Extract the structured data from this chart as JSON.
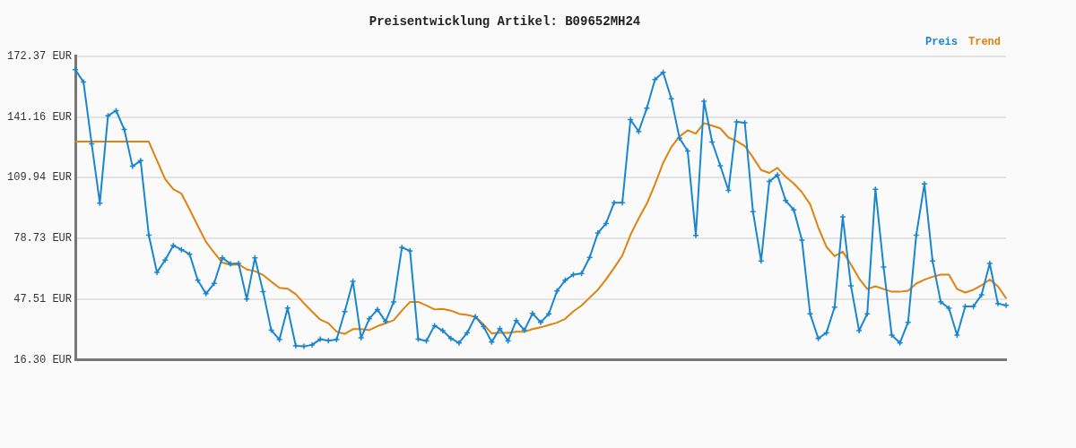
{
  "chart_data": {
    "type": "line",
    "title": "Preisentwicklung Artikel: B09652MH24",
    "categories": [
      null,
      null,
      null,
      null,
      null,
      null,
      null,
      null,
      null,
      null,
      null,
      null,
      null,
      null,
      null,
      null,
      null,
      null,
      null,
      null,
      null,
      null,
      null,
      null,
      null,
      null,
      null,
      null,
      null,
      null,
      null,
      null,
      null,
      null,
      null,
      null,
      null,
      null,
      null,
      null,
      null,
      null,
      null,
      null,
      null,
      null,
      null,
      null,
      null,
      null,
      null,
      null,
      null,
      null,
      null,
      null,
      null,
      null,
      null,
      null,
      null,
      null,
      null,
      null,
      null,
      null,
      null,
      null,
      null,
      null,
      null,
      null,
      null,
      null,
      null,
      null,
      null,
      null,
      null,
      null,
      null,
      null,
      null,
      null,
      null,
      null,
      null,
      null,
      null,
      null,
      null,
      null,
      null,
      null,
      null,
      null,
      null,
      null,
      null,
      null,
      null,
      null,
      null,
      null,
      null,
      null,
      null,
      null,
      null,
      null,
      null,
      null,
      null,
      null,
      null
    ],
    "series": [
      {
        "name": "Preis",
        "color": "#1a86d0",
        "marker": "cross",
        "values": [
          165.5,
          159.1,
          127.4,
          96.9,
          141.8,
          144.4,
          134.7,
          115.8,
          118.7,
          80.4,
          61.3,
          67.6,
          75.1,
          72.9,
          70.6,
          57.2,
          50.3,
          55.6,
          68.8,
          65.6,
          65.9,
          47.5,
          68.8,
          51.3,
          31.5,
          26.7,
          42.9,
          23.5,
          23.2,
          24.0,
          26.9,
          26.1,
          26.7,
          41.1,
          56.7,
          27.6,
          37.4,
          42.2,
          36.0,
          46.1,
          74.1,
          72.3,
          26.9,
          26.0,
          33.9,
          31.3,
          27.3,
          25.0,
          30.2,
          38.5,
          33.4,
          25.5,
          32.4,
          26.0,
          36.5,
          31.5,
          40.2,
          35.6,
          40.0,
          51.7,
          57.2,
          60.1,
          60.7,
          69.0,
          81.5,
          86.4,
          97.1,
          97.1,
          139.8,
          133.7,
          145.7,
          160.4,
          164.1,
          150.5,
          130.3,
          123.7,
          80.3,
          149.3,
          128.3,
          116.1,
          103.4,
          138.6,
          138.2,
          92.5,
          67.1,
          108.0,
          111.3,
          98.2,
          93.4,
          77.8,
          40.0,
          27.3,
          30.2,
          43.4,
          89.8,
          54.4,
          31.3,
          40.0,
          104.0,
          64.0,
          29.0,
          25.0,
          35.6,
          80.4,
          106.7,
          67.1,
          46.1,
          42.8,
          29.0,
          43.8,
          43.8,
          49.7,
          65.9,
          45.2,
          44.3
        ]
      },
      {
        "name": "Trend",
        "color": "#e0820e",
        "values": [
          128.5,
          128.5,
          128.5,
          128.5,
          128.5,
          128.5,
          128.5,
          128.5,
          128.5,
          128.5,
          118.8,
          109.2,
          104.0,
          101.7,
          93.6,
          85.2,
          77.0,
          71.4,
          66.3,
          65.1,
          65.4,
          62.8,
          61.9,
          59.9,
          56.5,
          53.3,
          52.9,
          50.0,
          45.4,
          41.1,
          37.0,
          35.1,
          30.8,
          29.6,
          32.1,
          32.1,
          31.6,
          33.6,
          35.1,
          36.7,
          41.6,
          46.1,
          46.1,
          44.3,
          42.2,
          42.5,
          41.6,
          40.0,
          39.4,
          38.5,
          34.5,
          29.9,
          30.2,
          30.2,
          30.7,
          30.7,
          32.1,
          33.0,
          34.2,
          35.4,
          37.4,
          41.2,
          44.2,
          48.3,
          52.3,
          57.6,
          63.6,
          69.9,
          80.6,
          89.0,
          96.6,
          106.6,
          117.6,
          125.7,
          131.1,
          134.3,
          132.6,
          138.0,
          136.7,
          135.3,
          130.6,
          128.8,
          126.2,
          120.4,
          113.9,
          112.4,
          115.0,
          110.4,
          107.0,
          102.4,
          96.3,
          84.4,
          74.4,
          69.6,
          71.9,
          65.4,
          58.1,
          52.7,
          54.1,
          52.7,
          51.3,
          51.3,
          51.8,
          55.5,
          57.5,
          59.0,
          60.1,
          60.1,
          52.7,
          50.9,
          52.3,
          54.6,
          57.6,
          54.1,
          48.0
        ]
      }
    ],
    "ylim": [
      16.3,
      172.37
    ],
    "yticks": [
      {
        "value": 16.3,
        "label": "16.30 EUR"
      },
      {
        "value": 47.51,
        "label": "47.51 EUR"
      },
      {
        "value": 78.73,
        "label": "78.73 EUR"
      },
      {
        "value": 109.94,
        "label": "109.94 EUR"
      },
      {
        "value": 141.16,
        "label": "141.16 EUR"
      },
      {
        "value": 172.37,
        "label": "172.37 EUR"
      }
    ],
    "grid": "y",
    "legend": "top right",
    "line_style": "solid"
  }
}
